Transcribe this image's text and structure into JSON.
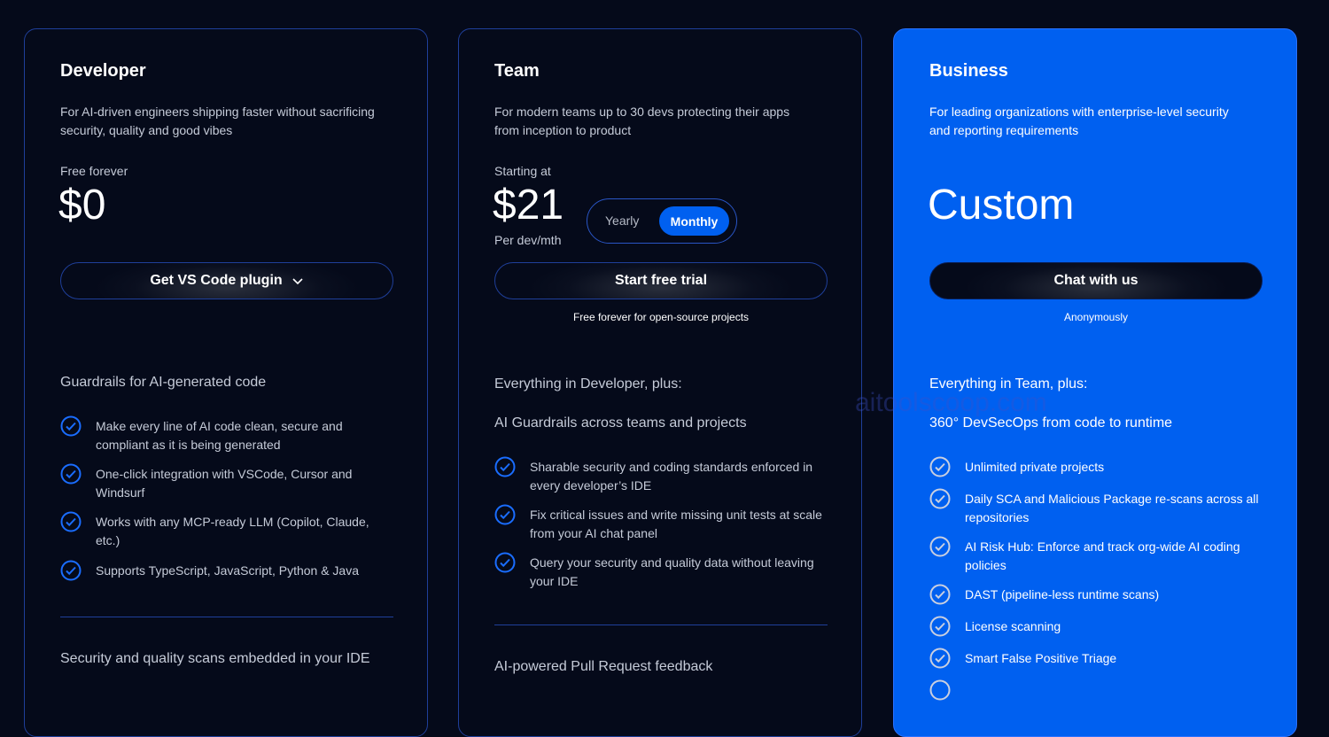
{
  "accent_color": "#0060f0",
  "background_color": "#050a1a",
  "watermark": "aitoolscoop.com",
  "plans": [
    {
      "name": "Developer",
      "description": "For AI-driven engineers shipping faster without sacrificing security, quality and good vibes",
      "price_label": "Free forever",
      "price": "$0",
      "cta": "Get VS Code plugin",
      "cta_icon": "chevron-down-icon",
      "section1": "Guardrails for AI-generated code",
      "features": [
        "Make every line of AI code clean, secure and compliant as it is being generated",
        "One-click integration with VSCode, Cursor and Windsurf",
        "Works with any MCP-ready LLM (Copilot, Claude, etc.)",
        "Supports TypeScript, JavaScript, Python & Java"
      ],
      "section2": "Security and quality scans embedded in your IDE"
    },
    {
      "name": "Team",
      "description": "For modern teams up to 30 devs protecting their apps from inception to product",
      "price_label": "Starting at",
      "price": "$21",
      "price_unit": "Per dev/mth",
      "billing_toggle": {
        "options": [
          "Yearly",
          "Monthly"
        ],
        "selected": "Monthly"
      },
      "cta": "Start free trial",
      "cta_note": "Free forever for open-source projects",
      "intro": "Everything in Developer, plus:",
      "section1": "AI Guardrails across teams and projects",
      "features": [
        "Sharable security and coding standards enforced in every developer’s IDE",
        "Fix critical issues and write missing unit tests at scale from your AI chat panel",
        "Query your security and quality data without leaving your IDE"
      ],
      "section2": "AI-powered Pull Request feedback"
    },
    {
      "name": "Business",
      "description": "For leading organizations with enterprise-level security and reporting requirements",
      "price": "Custom",
      "cta": "Chat with us",
      "cta_note": "Anonymously",
      "intro": "Everything in Team, plus:",
      "section1": "360° DevSecOps from code to runtime",
      "features": [
        "Unlimited private projects",
        "Daily SCA and Malicious Package re-scans across all repositories",
        "AI Risk Hub: Enforce and track org-wide AI coding policies",
        "DAST (pipeline-less runtime scans)",
        "License scanning",
        "Smart False Positive Triage"
      ]
    }
  ]
}
